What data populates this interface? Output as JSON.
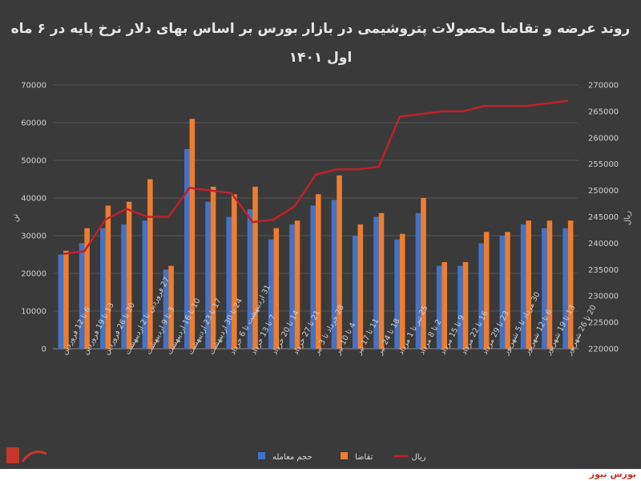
{
  "chart_data": {
    "type": "bar",
    "title_line1": "روند عرضه و تقاضا محصولات پتروشیمی در بازار بورس بر اساس بهای دلار نرخ پایه در ۶ ماه",
    "title_line2": "اول ۱۴۰۱",
    "ylabel_left": "تن",
    "ylabel_right": "ریال",
    "ylim_left": [
      0,
      70000
    ],
    "ylim_right": [
      220000,
      270000
    ],
    "yticks_left": [
      "0",
      "10000",
      "20000",
      "30000",
      "40000",
      "50000",
      "60000",
      "70000"
    ],
    "yticks_right": [
      "220000",
      "225000",
      "230000",
      "235000",
      "240000",
      "245000",
      "250000",
      "255000",
      "260000",
      "265000",
      "270000"
    ],
    "grid": true,
    "legend_position": "bottom",
    "categories": [
      "6 تا 12 فروردین",
      "13 تا 19 فروردین",
      "20 تا 26 فروردین",
      "27 فروردین تا 2 اردیبهشت",
      "3 تا 9 اردیبهشت",
      "10 تا 16 اردیبهشت",
      "17 تا 23 اردیبهشت",
      "24 تا 30 اردیبهشت",
      "31 اردیبهشت تا 6 خرداد",
      "7 تا 13 خرداد",
      "14 تا 20 خرداد",
      "21 تا 27 خرداد",
      "28 خرداد تا 3 تیر",
      "4 تا 10 تیر",
      "11 تا 17 تیر",
      "18 تا 24 تیر",
      "25 تیر تا 1 مرداد",
      "2 تا 8 مرداد",
      "9 تا 15 مرداد",
      "16 تا 22 مرداد",
      "23 تا 29 مرداد",
      "30 مرداد تا 5 شهریور",
      "6 تا 12 شهریور",
      "13 تا 19 شهریور",
      "20 تا 26 شهریور"
    ],
    "series": [
      {
        "name": "حجم معامله",
        "type": "bar",
        "axis": "left",
        "color": "#4472c4",
        "values": [
          25000,
          28000,
          32000,
          33000,
          34000,
          21000,
          53000,
          39000,
          35000,
          37000,
          29000,
          33000,
          38000,
          39500,
          30000,
          35000,
          29000,
          36000,
          22000,
          22000,
          28000,
          30000,
          33000,
          32000,
          32000
        ]
      },
      {
        "name": "تقاضا",
        "type": "bar",
        "axis": "left",
        "color": "#ed7d31",
        "values": [
          26000,
          32000,
          38000,
          39000,
          45000,
          22000,
          61000,
          43000,
          41000,
          43000,
          32000,
          34000,
          41000,
          46000,
          33000,
          36000,
          30500,
          40000,
          23000,
          23000,
          31000,
          31000,
          34000,
          34000,
          34000
        ]
      },
      {
        "name": "ریال",
        "type": "line",
        "axis": "right",
        "color": "#c0202a",
        "values": [
          238000,
          238500,
          244500,
          246500,
          245000,
          245000,
          250500,
          250000,
          249500,
          244000,
          244500,
          247000,
          253000,
          254000,
          254000,
          254500,
          264000,
          264500,
          265000,
          265000,
          266000,
          266000,
          266000,
          266500,
          267000
        ]
      }
    ]
  },
  "logos": {
    "right_text": "بورس نیوز",
    "accent": "#c0392b"
  }
}
